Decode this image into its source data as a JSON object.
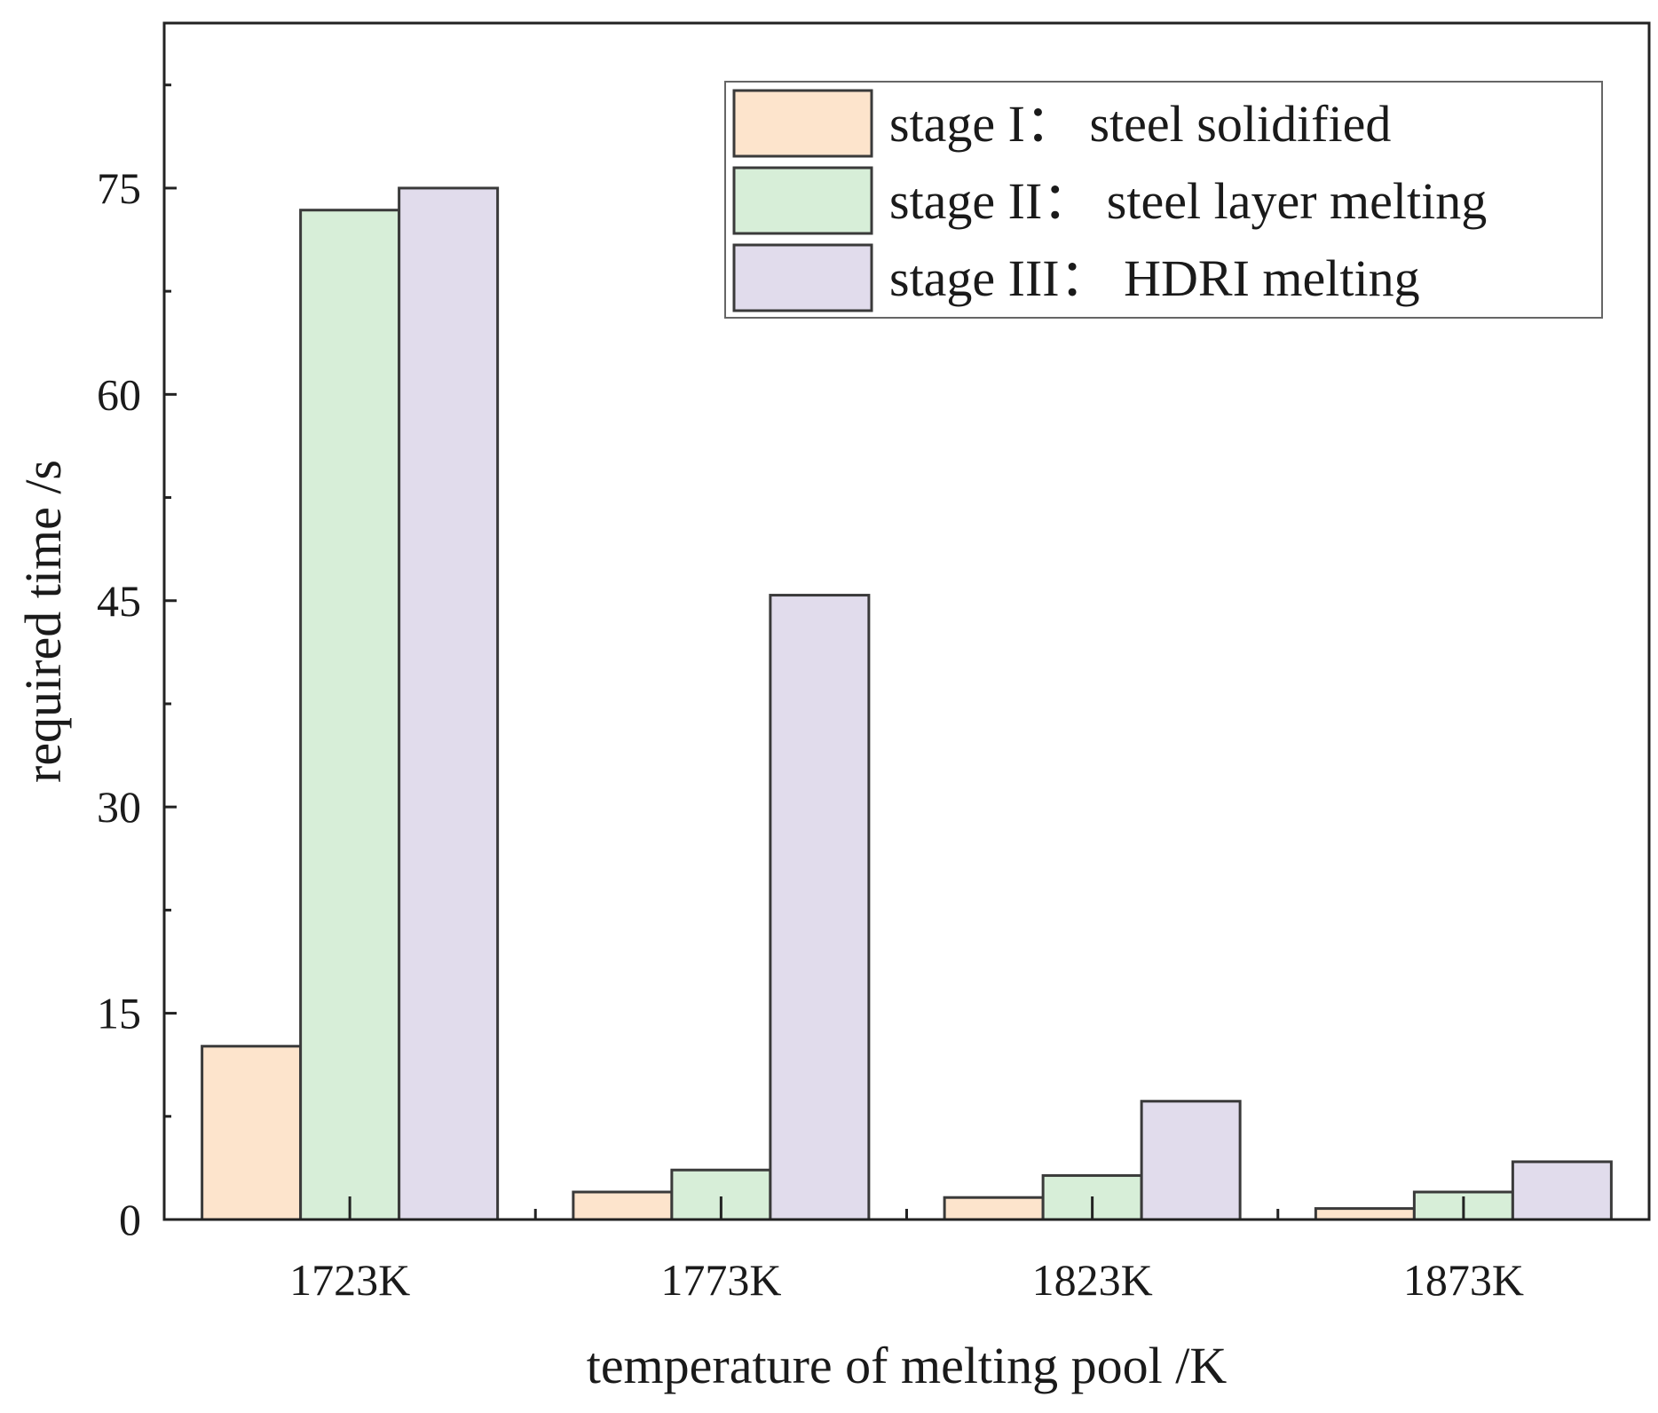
{
  "chart_data": {
    "type": "bar",
    "title": "",
    "xlabel": "temperature of melting pool  /K",
    "ylabel": "required time /s",
    "ylim": [
      0,
      87
    ],
    "yticks": [
      0,
      15,
      30,
      45,
      60,
      75
    ],
    "categories": [
      "1723K",
      "1773K",
      "1823K",
      "1873K"
    ],
    "legend_position": "top-right",
    "series": [
      {
        "name": "stage I：  steel solidified",
        "color": "#fde4cc",
        "values": [
          12.6,
          2.0,
          1.6,
          0.8
        ]
      },
      {
        "name": "stage II：  steel layer melting",
        "color": "#d7eed8",
        "values": [
          73.4,
          3.6,
          3.2,
          2.0
        ]
      },
      {
        "name": "stage III：  HDRI melting",
        "color": "#e1dcec",
        "values": [
          75.0,
          45.4,
          8.6,
          4.2
        ]
      }
    ]
  }
}
